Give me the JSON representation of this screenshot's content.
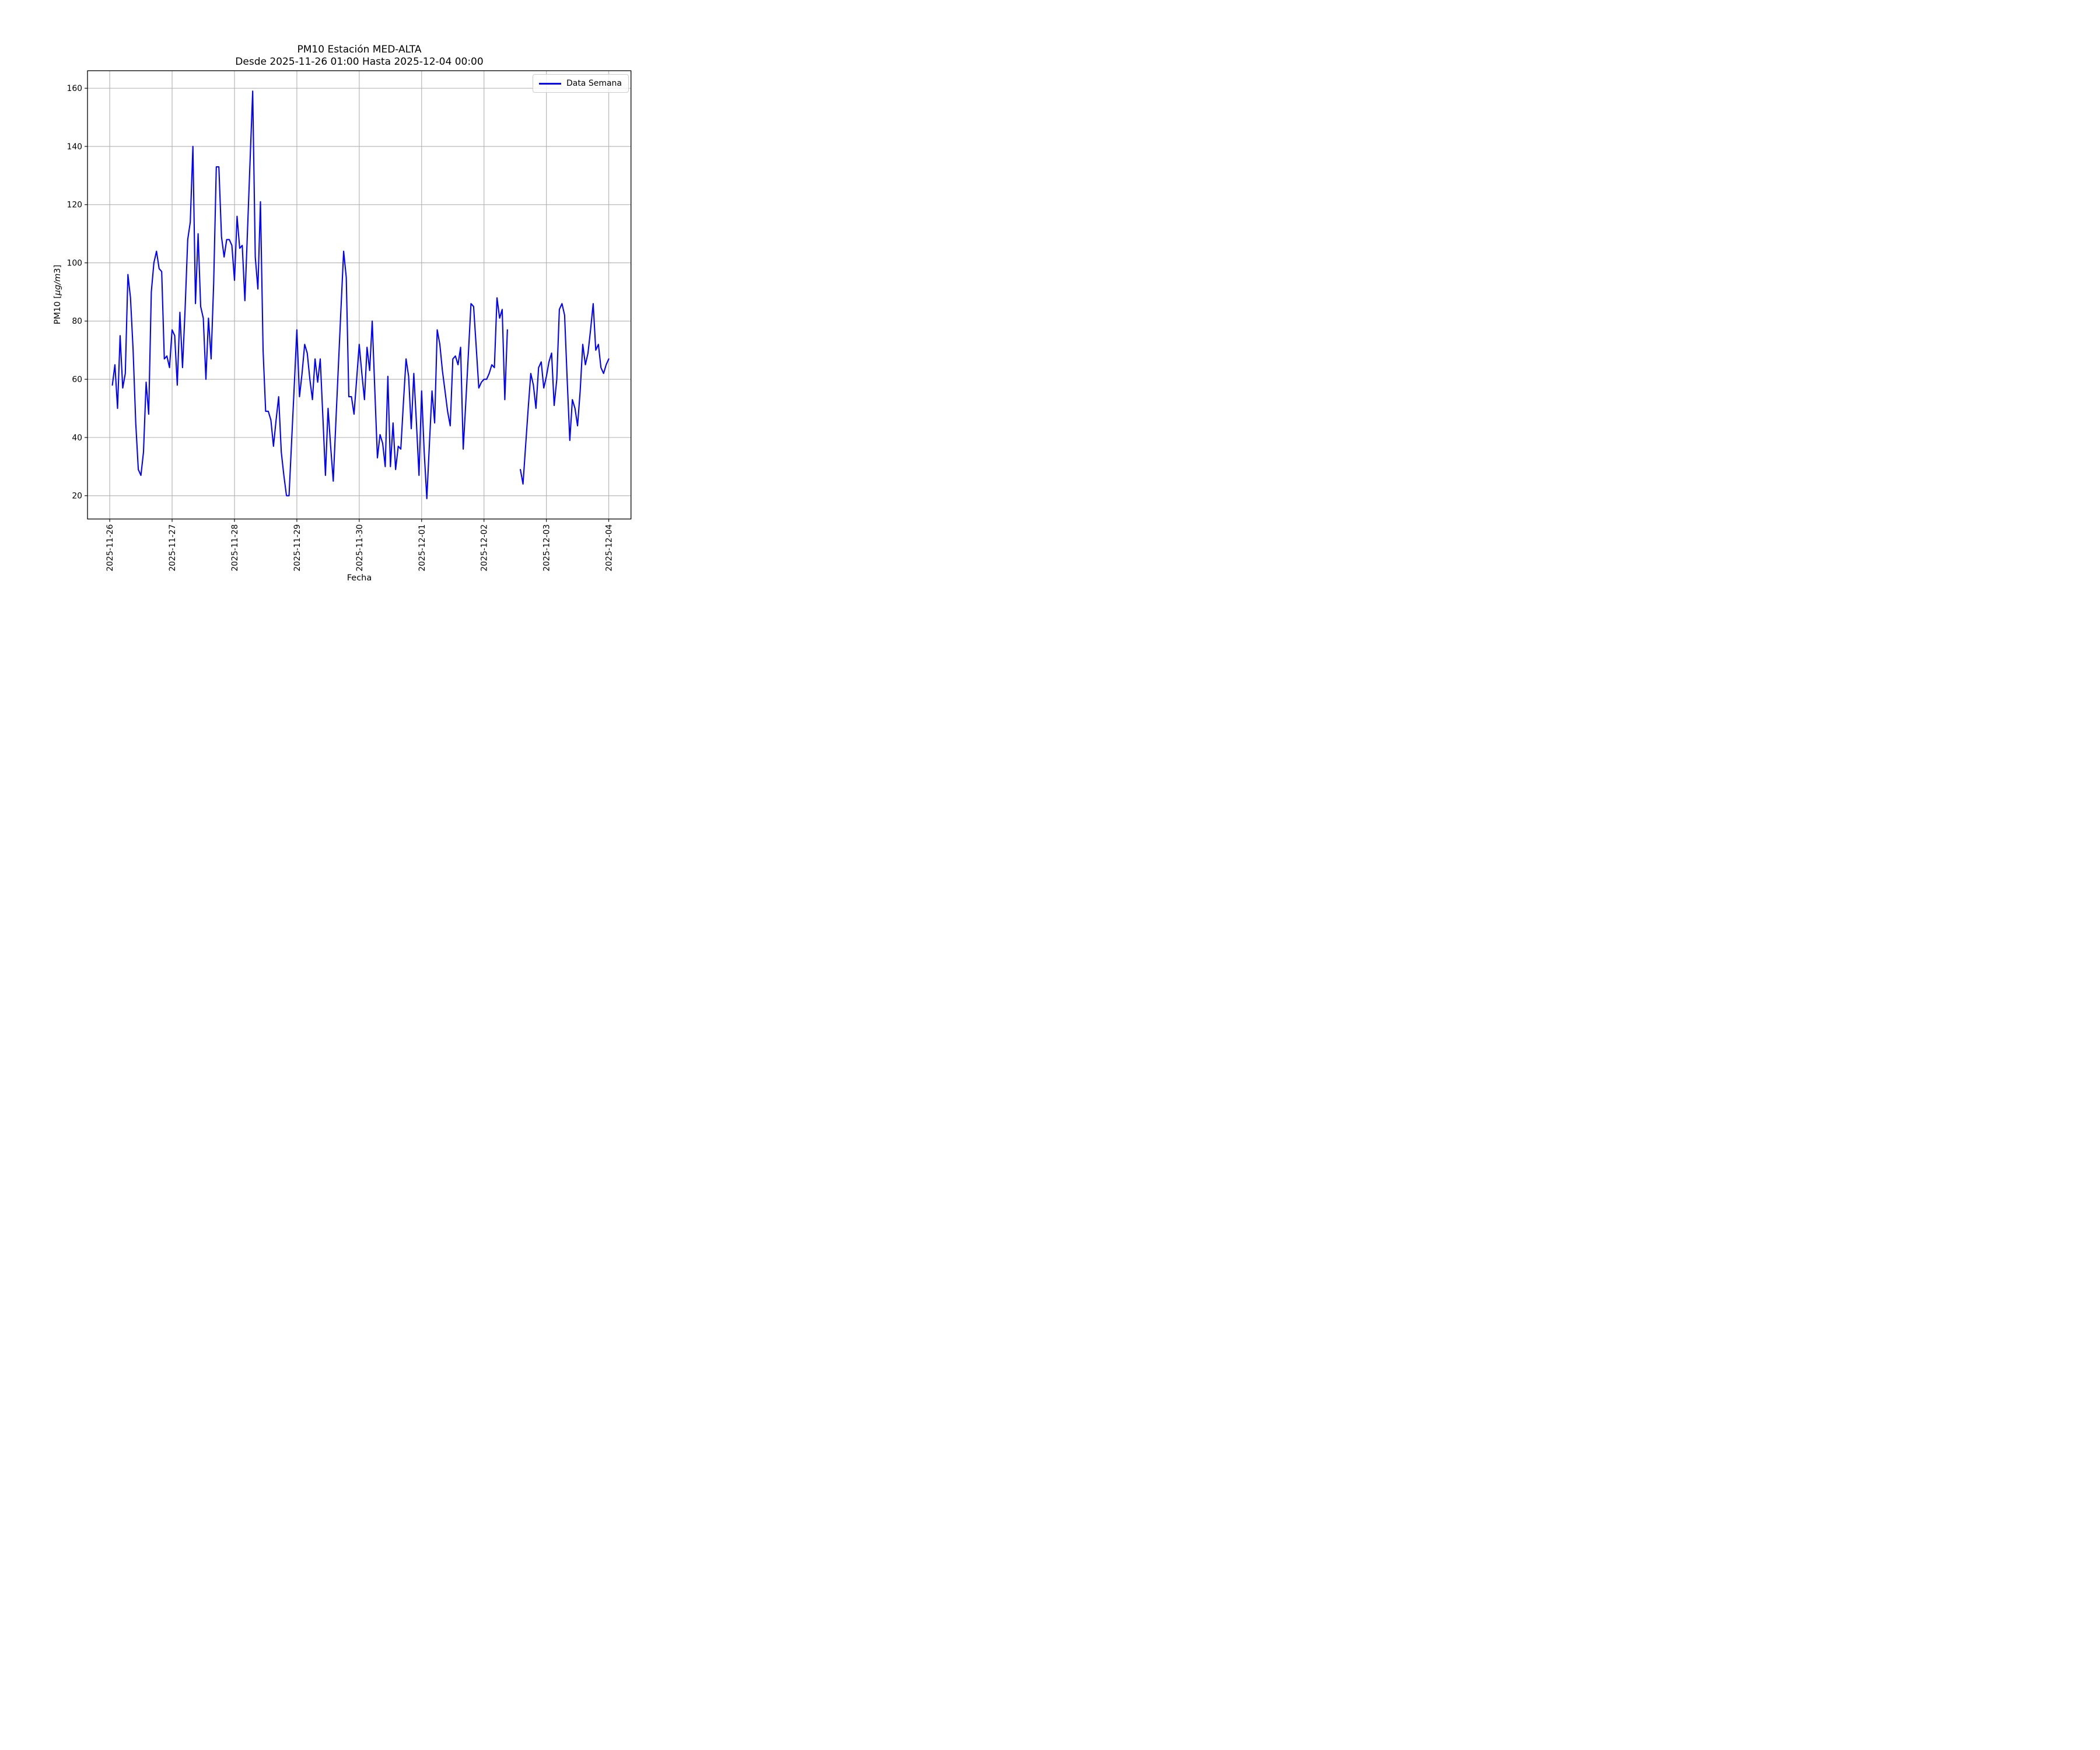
{
  "figure": {
    "background": "#ffffff"
  },
  "chart_data": {
    "type": "line",
    "title": "PM10 Estación MED-ALTA",
    "subtitle": "Desde 2025-11-26 01:00 Hasta 2025-12-04 00:00",
    "xlabel": "Fecha",
    "ylabel": "PM10 [µg/m3]",
    "ylabel_parts": {
      "prefix": "PM10 [",
      "italic": "µg/m",
      "digit": "3",
      "close": "]"
    },
    "legend": {
      "label": "Data Semana",
      "position": "upper right"
    },
    "line_color": "#0000ff",
    "line_width": 2.1,
    "grid": true,
    "grid_color": "#b0b0b0",
    "background": "#ffffff",
    "x_start": "2025-11-26 01:00",
    "x_end": "2025-12-04 00:00",
    "x_interval_hours": 1,
    "x_tick_labels": [
      "2025-11-26",
      "2025-11-27",
      "2025-11-28",
      "2025-11-29",
      "2025-11-30",
      "2025-12-01",
      "2025-12-02",
      "2025-12-03",
      "2025-12-04"
    ],
    "x_tick_hours": [
      0,
      24,
      48,
      72,
      96,
      120,
      144,
      168,
      192
    ],
    "y_ticks": [
      20,
      40,
      60,
      80,
      100,
      120,
      140,
      160
    ],
    "xlim_hours": [
      -8.55,
      200.55
    ],
    "ylim": [
      12,
      166
    ],
    "gap_timestamps": [
      "2025-12-02 10:00",
      "2025-12-02 11:00",
      "2025-12-02 12:00",
      "2025-12-02 13:00"
    ],
    "values": [
      58,
      65,
      50,
      75,
      57,
      62,
      96,
      88,
      70,
      45,
      29,
      27,
      35,
      59,
      48,
      90,
      100,
      104,
      98,
      97,
      67,
      68,
      64,
      77,
      75,
      58,
      83,
      64,
      84,
      108,
      114,
      140,
      86,
      110,
      85,
      81,
      60,
      81,
      67,
      93,
      133,
      133,
      109,
      102,
      108,
      108,
      106,
      94,
      116,
      105,
      106,
      87,
      111,
      135,
      159,
      102,
      91,
      121,
      70,
      49,
      49,
      46,
      37,
      46,
      54,
      35,
      27,
      20,
      20,
      39,
      58,
      77,
      54,
      62,
      72,
      69,
      60,
      53,
      67,
      59,
      67,
      47,
      27,
      50,
      37,
      25,
      45,
      65,
      85,
      104,
      95,
      54,
      54,
      48,
      60,
      72,
      62,
      53,
      71,
      63,
      80,
      56,
      33,
      41,
      38,
      30,
      61,
      30,
      45,
      29,
      37,
      36,
      52,
      67,
      61,
      43,
      62,
      45,
      27,
      56,
      35,
      19,
      38,
      56,
      45,
      77,
      72,
      63,
      56,
      49,
      44,
      67,
      68,
      65,
      71,
      36,
      52,
      69,
      86,
      85,
      71,
      57,
      59,
      60,
      60,
      62,
      65,
      64,
      88,
      81,
      84,
      53,
      77,
      null,
      null,
      null,
      null,
      29,
      24,
      37,
      50,
      62,
      58,
      50,
      64,
      66,
      57,
      61,
      66,
      69,
      51,
      60,
      84,
      86,
      82,
      60,
      39,
      53,
      50,
      44,
      56,
      72,
      65,
      69,
      77,
      86,
      70,
      72,
      64,
      62,
      65,
      67
    ]
  }
}
